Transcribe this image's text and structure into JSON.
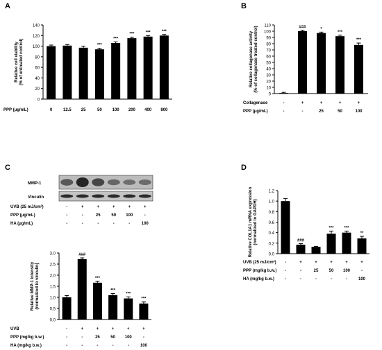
{
  "chart_data": [
    {
      "panel": "A",
      "type": "bar",
      "ylabel": [
        "Relative cell viability",
        "(% of untreated control)"
      ],
      "ylim": [
        0,
        140
      ],
      "yticks": [
        "0",
        "20",
        "40",
        "60",
        "80",
        "100",
        "120",
        "140"
      ],
      "categories": [
        "0",
        "12.5",
        "25",
        "50",
        "100",
        "200",
        "400",
        "800"
      ],
      "values": [
        100,
        101,
        97,
        94,
        106,
        115,
        118,
        120
      ],
      "errors": [
        2,
        2,
        3,
        2,
        2,
        2,
        2,
        2
      ],
      "sig": [
        "",
        "",
        "",
        "***",
        "***",
        "***",
        "***",
        "***"
      ],
      "rows": [
        {
          "label": "PPP (μg/mL)",
          "cells": [
            "0",
            "12.5",
            "25",
            "50",
            "100",
            "200",
            "400",
            "800"
          ]
        }
      ]
    },
    {
      "panel": "B",
      "type": "bar",
      "ylabel": [
        "Relative collagenase activity",
        "(% of collagenase treated control)"
      ],
      "ylim": [
        0,
        110
      ],
      "yticks": [
        "0",
        "10",
        "20",
        "30",
        "40",
        "50",
        "60",
        "70",
        "80",
        "90",
        "100",
        "110"
      ],
      "values": [
        1,
        100,
        97,
        92,
        78
      ],
      "errors": [
        1,
        1.5,
        1.5,
        1.5,
        3
      ],
      "sig": [
        "",
        "###",
        "*",
        "***",
        "***"
      ],
      "rows": [
        {
          "label": "Collagenase",
          "cells": [
            "-",
            "+",
            "+",
            "+",
            "+"
          ]
        },
        {
          "label": "PPP (μg/mL)",
          "cells": [
            "-",
            "-",
            "25",
            "50",
            "100"
          ]
        }
      ]
    },
    {
      "panel": "C",
      "type": "bar",
      "blots": [
        "MMP-1",
        "Vinculin"
      ],
      "blot_rows": [
        {
          "label": "UVB (25 mJ/cm²)",
          "cells": [
            "-",
            "+",
            "+",
            "+",
            "+",
            "+"
          ]
        },
        {
          "label": "PPP (μg/mL)",
          "cells": [
            "-",
            "-",
            "25",
            "50",
            "100",
            "-"
          ]
        },
        {
          "label": "HA (μg/mL)",
          "cells": [
            "-",
            "-",
            "-",
            "-",
            "-",
            "100"
          ]
        }
      ],
      "ylabel": [
        "Relative MMP-1 intensity",
        "(normalized to vinculin)"
      ],
      "ylim": [
        0,
        3.0
      ],
      "yticks": [
        "0.0",
        "0.5",
        "1.0",
        "1.5",
        "2.0",
        "2.5",
        "3.0"
      ],
      "values": [
        1.0,
        2.72,
        1.66,
        1.1,
        0.95,
        0.72
      ],
      "errors": [
        0.08,
        0.06,
        0.06,
        0.07,
        0.07,
        0.07
      ],
      "sig": [
        "",
        "###",
        "***",
        "***",
        "***",
        "***"
      ],
      "rows": [
        {
          "label": "UVB",
          "cells": [
            "-",
            "+",
            "+",
            "+",
            "+",
            "+"
          ]
        },
        {
          "label": "PPP (mg/kg b.w.)",
          "cells": [
            "-",
            "-",
            "25",
            "50",
            "100",
            "-"
          ]
        },
        {
          "label": "HA (mg/kg b.w.)",
          "cells": [
            "-",
            "-",
            "-",
            "-",
            "-",
            "100"
          ]
        }
      ]
    },
    {
      "panel": "D",
      "type": "bar",
      "ylabel": [
        "Relative COL1A1 mRNA expression",
        "(normalized to GAPDH)"
      ],
      "ylim": [
        0,
        1.2
      ],
      "yticks": [
        "0.0",
        "0.2",
        "0.4",
        "0.6",
        "0.8",
        "1.0",
        "1.2"
      ],
      "values": [
        1.0,
        0.17,
        0.13,
        0.38,
        0.4,
        0.29
      ],
      "errors": [
        0.05,
        0.02,
        0.01,
        0.05,
        0.03,
        0.04
      ],
      "sig": [
        "",
        "###",
        "",
        "***",
        "***",
        "**"
      ],
      "rows": [
        {
          "label": "UVB (25 mJ/cm²)",
          "cells": [
            "-",
            "+",
            "+",
            "+",
            "+",
            "+"
          ]
        },
        {
          "label": "PPP (mg/kg b.w.)",
          "cells": [
            "-",
            "-",
            "25",
            "50",
            "100",
            "-"
          ]
        },
        {
          "label": "HA (mg/kg b.w.)",
          "cells": [
            "-",
            "-",
            "-",
            "-",
            "-",
            "100"
          ]
        }
      ]
    }
  ]
}
